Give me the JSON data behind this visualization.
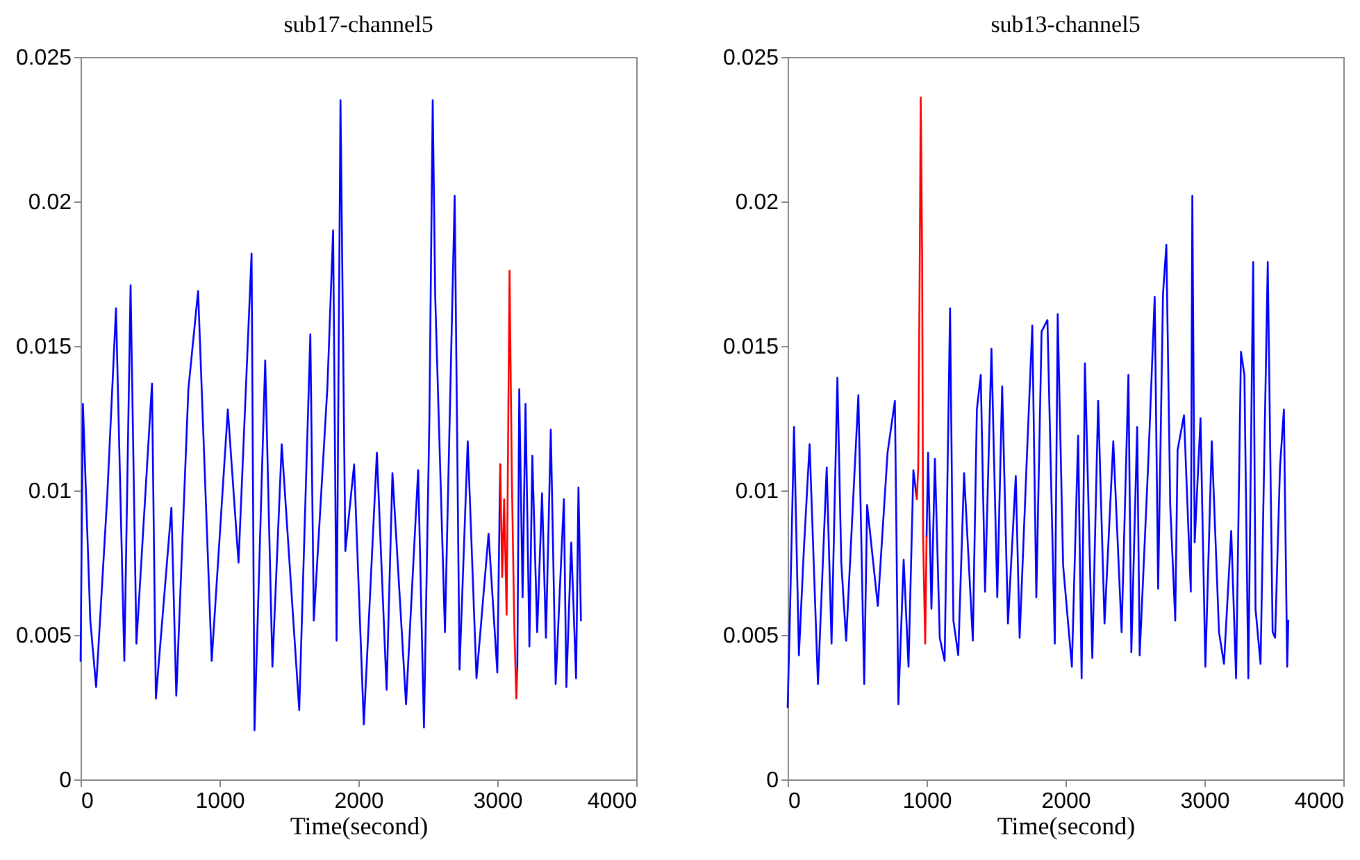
{
  "chart_data": [
    {
      "type": "line",
      "title": "sub17-channel5",
      "xlabel": "Time(second)",
      "xlim": [
        0,
        4000
      ],
      "xticks": [
        0,
        1000,
        2000,
        3000,
        4000
      ],
      "ylim": [
        0,
        0.025
      ],
      "yticks": [
        0,
        0.005,
        0.01,
        0.015,
        0.02,
        0.025
      ],
      "grid": false,
      "series": [
        {
          "color": "#0000ff",
          "x": [
            0,
            17,
            70,
            112,
            192,
            255,
            315,
            360,
            402,
            514,
            542,
            654,
            689,
            776,
            846,
            944,
            1060,
            1137,
            1231,
            1252,
            1329,
            1381,
            1448,
            1574,
            1654,
            1679,
            1777,
            1818,
            1843,
            1871,
            1906,
            1969,
            2039,
            2133,
            2203,
            2245,
            2343,
            2430,
            2472,
            2511,
            2535,
            2553,
            2623,
            2693,
            2728,
            2787,
            2850,
            2937,
            3000,
            3021,
            3088,
            3144,
            3158,
            3182,
            3203,
            3231,
            3252,
            3287,
            3322,
            3350,
            3385,
            3420,
            3479,
            3497,
            3532,
            3567,
            3584,
            3602
          ],
          "values": [
            0.0041,
            0.013,
            0.0055,
            0.0032,
            0.0098,
            0.0163,
            0.0041,
            0.0171,
            0.0047,
            0.0137,
            0.0028,
            0.0094,
            0.0029,
            0.0135,
            0.0169,
            0.0041,
            0.0128,
            0.0075,
            0.0182,
            0.0017,
            0.0145,
            0.0039,
            0.0116,
            0.0024,
            0.0154,
            0.0055,
            0.0136,
            0.019,
            0.0048,
            0.0235,
            0.0079,
            0.0109,
            0.0019,
            0.0113,
            0.0031,
            0.0106,
            0.0026,
            0.0107,
            0.0018,
            0.0125,
            0.0235,
            0.0167,
            0.0051,
            0.0202,
            0.0038,
            0.0117,
            0.0035,
            0.0085,
            0.0037,
            0.0109,
            null,
            0.0038,
            0.0135,
            0.0063,
            0.013,
            0.0046,
            0.0112,
            0.0051,
            0.0099,
            0.0049,
            0.0121,
            0.0033,
            0.0097,
            0.0032,
            0.0082,
            0.0035,
            0.0101,
            0.0055
          ]
        },
        {
          "color": "#ff0000",
          "x": [
            3021,
            3035,
            3049,
            3067,
            3088,
            3105,
            3123,
            3137,
            3144
          ],
          "values": [
            0.0109,
            0.007,
            0.0097,
            0.0057,
            0.0176,
            0.0103,
            0.0051,
            0.0028,
            0.0038
          ]
        }
      ]
    },
    {
      "type": "line",
      "title": "sub13-channel5",
      "xlabel": "Time(second)",
      "xlim": [
        0,
        4000
      ],
      "xticks": [
        0,
        1000,
        2000,
        3000,
        4000
      ],
      "ylim": [
        0,
        0.025
      ],
      "yticks": [
        0,
        0.005,
        0.01,
        0.015,
        0.02,
        0.025
      ],
      "grid": false,
      "series": [
        {
          "color": "#0000ff",
          "x": [
            0,
            18,
            46,
            81,
            116,
            158,
            218,
            281,
            316,
            358,
            386,
            421,
            509,
            551,
            572,
            649,
            719,
            772,
            797,
            835,
            870,
            905,
            930,
            960,
            1000,
            1011,
            1035,
            1060,
            1095,
            1130,
            1169,
            1193,
            1228,
            1270,
            1333,
            1362,
            1390,
            1421,
            1467,
            1509,
            1544,
            1586,
            1642,
            1670,
            1719,
            1761,
            1790,
            1828,
            1870,
            1923,
            1944,
            1983,
            2046,
            2091,
            2116,
            2140,
            2193,
            2235,
            2281,
            2344,
            2404,
            2453,
            2474,
            2516,
            2534,
            2597,
            2642,
            2667,
            2702,
            2726,
            2754,
            2790,
            2807,
            2853,
            2902,
            2913,
            2930,
            2972,
            3007,
            3053,
            3105,
            3141,
            3193,
            3228,
            3263,
            3288,
            3316,
            3351,
            3368,
            3404,
            3456,
            3491,
            3509,
            3544,
            3572,
            3596,
            3604
          ],
          "values": [
            0.0025,
            0.006,
            0.0122,
            0.0043,
            0.0079,
            0.0116,
            0.0033,
            0.0108,
            0.0047,
            0.0139,
            0.0075,
            0.0048,
            0.0133,
            0.0033,
            0.0095,
            0.006,
            0.0113,
            0.0131,
            0.0026,
            0.0076,
            0.0039,
            0.0107,
            0.0097,
            null,
            0.0084,
            0.0113,
            0.0059,
            0.0111,
            0.0049,
            0.0041,
            0.0163,
            0.0055,
            0.0043,
            0.0106,
            0.0048,
            0.0128,
            0.014,
            0.0065,
            0.0149,
            0.0063,
            0.0136,
            0.0054,
            0.0105,
            0.0049,
            0.0108,
            0.0157,
            0.0063,
            0.0155,
            0.0159,
            0.0047,
            0.0161,
            0.0074,
            0.0039,
            0.0119,
            0.0035,
            0.0144,
            0.0042,
            0.0131,
            0.0054,
            0.0117,
            0.0051,
            0.014,
            0.0044,
            0.0122,
            0.0043,
            0.0111,
            0.0167,
            0.0066,
            0.0168,
            0.0185,
            0.0095,
            0.0055,
            0.0114,
            0.0126,
            0.0065,
            0.0202,
            0.0082,
            0.0125,
            0.0039,
            0.0117,
            0.0051,
            0.004,
            0.0086,
            0.0035,
            0.0148,
            0.014,
            0.0035,
            0.0179,
            0.0059,
            0.004,
            0.0179,
            0.0051,
            0.0049,
            0.0108,
            0.0128,
            0.0039,
            0.0055
          ]
        },
        {
          "color": "#ff0000",
          "x": [
            930,
            940,
            951,
            958,
            968,
            975,
            990,
            1000
          ],
          "values": [
            0.0097,
            0.0108,
            0.0181,
            0.0236,
            0.0181,
            0.0084,
            0.0047,
            0.0084
          ]
        }
      ]
    }
  ]
}
